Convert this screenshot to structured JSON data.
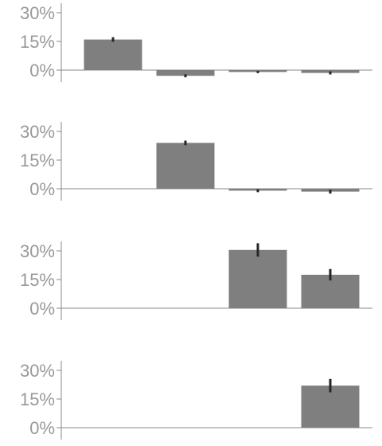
{
  "chart_data": [
    {
      "type": "bar",
      "categories": [
        "",
        "",
        "",
        ""
      ],
      "values": [
        16,
        -3,
        -1,
        -1.5
      ],
      "errors": [
        1.2,
        0.8,
        0.6,
        0.8
      ],
      "ylim": [
        -5,
        35
      ],
      "yticks": [
        0,
        15,
        30
      ],
      "ytick_labels": [
        "0%",
        "15%",
        "30%"
      ],
      "title": "",
      "xlabel": "",
      "ylabel": ""
    },
    {
      "type": "bar",
      "categories": [
        "",
        "",
        "",
        ""
      ],
      "values": [
        null,
        24,
        -1,
        -1.5
      ],
      "errors": [
        null,
        1.2,
        0.8,
        1.0
      ],
      "ylim": [
        -5,
        35
      ],
      "yticks": [
        0,
        15,
        30
      ],
      "ytick_labels": [
        "0%",
        "15%",
        "30%"
      ],
      "title": "",
      "xlabel": "",
      "ylabel": ""
    },
    {
      "type": "bar",
      "categories": [
        "",
        "",
        "",
        ""
      ],
      "values": [
        null,
        null,
        30.5,
        17.5
      ],
      "errors": [
        null,
        null,
        3.5,
        3.0
      ],
      "ylim": [
        -5,
        35
      ],
      "yticks": [
        0,
        15,
        30
      ],
      "ytick_labels": [
        "0%",
        "15%",
        "30%"
      ],
      "title": "",
      "xlabel": "",
      "ylabel": ""
    },
    {
      "type": "bar",
      "categories": [
        "",
        "",
        "",
        ""
      ],
      "values": [
        null,
        null,
        null,
        22
      ],
      "errors": [
        null,
        null,
        null,
        3.5
      ],
      "ylim": [
        -5,
        35
      ],
      "yticks": [
        0,
        15,
        30
      ],
      "ytick_labels": [
        "0%",
        "15%",
        "30%"
      ],
      "title": "",
      "xlabel": "",
      "ylabel": ""
    }
  ],
  "colors": {
    "bar": "#7f7f7f",
    "error": "#262626",
    "axis": "#888888",
    "tick_text": "#999999"
  }
}
